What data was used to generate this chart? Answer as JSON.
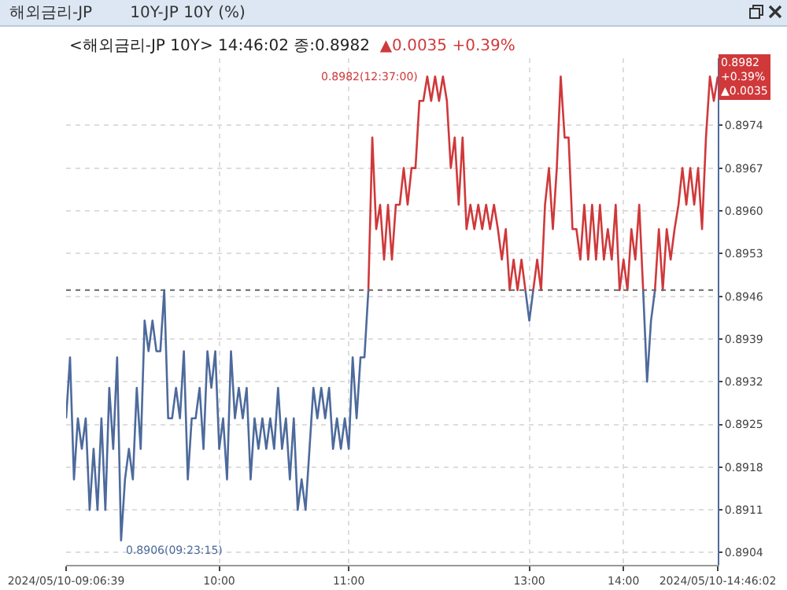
{
  "chart_data": {
    "type": "line",
    "title": "해외금리-JP",
    "subtitle": "10Y-JP 10Y (%)",
    "categories": [
      "2024/05/10-09:06:39",
      null,
      null,
      null,
      null,
      null,
      null,
      null,
      null,
      null,
      null,
      null,
      null,
      null,
      null,
      null,
      null,
      null,
      null,
      null,
      null,
      null,
      null,
      null,
      null,
      null,
      null,
      null,
      null,
      null,
      null,
      null,
      null,
      null,
      null,
      null,
      null,
      null,
      null,
      "10:00",
      null,
      null,
      null,
      null,
      null,
      null,
      null,
      null,
      null,
      null,
      null,
      null,
      null,
      null,
      null,
      null,
      null,
      null,
      null,
      null,
      null,
      null,
      null,
      null,
      null,
      null,
      null,
      null,
      null,
      null,
      null,
      null,
      "11:00",
      null,
      null,
      null,
      null,
      null,
      null,
      null,
      null,
      null,
      null,
      null,
      null,
      null,
      null,
      null,
      null,
      null,
      null,
      null,
      null,
      null,
      null,
      null,
      null,
      null,
      null,
      null,
      null,
      null,
      null,
      null,
      null,
      null,
      null,
      null,
      null,
      null,
      null,
      null,
      null,
      null,
      null,
      null,
      null,
      null,
      "13:00",
      null,
      null,
      null,
      null,
      null,
      null,
      null,
      null,
      null,
      null,
      null,
      null,
      null,
      null,
      null,
      null,
      null,
      null,
      null,
      null,
      null,
      null,
      null,
      "14:00",
      null,
      null,
      null,
      null,
      null,
      null,
      null,
      null,
      null,
      null,
      null,
      null,
      null,
      null,
      null,
      null,
      null,
      null,
      null,
      null,
      null,
      null,
      null,
      "2024/05/10-14:46:02"
    ],
    "series": [
      {
        "color": "#4d6a9c",
        "values": [
          0.8926,
          0.8936,
          0.8916,
          0.8926,
          0.8921,
          0.8926,
          0.8911,
          0.8921,
          0.8911,
          0.8926,
          0.8911,
          0.8931,
          0.8921,
          0.8936,
          0.8906,
          0.8916,
          0.8921,
          0.8916,
          0.8931,
          0.8921,
          0.8942,
          0.8937,
          0.8942,
          0.8937,
          0.8937,
          0.8947,
          0.8926,
          0.8926,
          0.8931,
          0.8926,
          0.8937,
          0.8916,
          0.8926,
          0.8926,
          0.8931,
          0.8921,
          0.8937,
          0.8931,
          0.8937,
          0.8921,
          0.8926,
          0.8916,
          0.8937,
          0.8926,
          0.8931,
          0.8926,
          0.8931,
          0.8916,
          0.8926,
          0.8921,
          0.8926,
          0.8921,
          0.8926,
          0.8921,
          0.8931,
          0.8921,
          0.8926,
          0.8916,
          0.8926,
          0.8911,
          0.8916,
          0.8911,
          0.8921,
          0.8931,
          0.8926,
          0.8931,
          0.8926,
          0.8931,
          0.8921,
          0.8926,
          0.8921,
          0.8926,
          0.8921,
          0.8936,
          0.8926,
          0.8936,
          0.8936,
          0.8947,
          null,
          null,
          null,
          null,
          null,
          null,
          null,
          null,
          null,
          null,
          null,
          null,
          null,
          null,
          null,
          null,
          null,
          null,
          null,
          null,
          null,
          null,
          null,
          null,
          null,
          null,
          null,
          null,
          null,
          null,
          null,
          null,
          null,
          null,
          null,
          null,
          null,
          null,
          null,
          0.8947,
          0.8942,
          0.8947,
          null,
          null,
          null,
          null,
          null,
          null,
          null,
          null,
          null,
          null,
          null,
          null,
          null,
          null,
          null,
          null,
          null,
          null,
          null,
          null,
          null,
          null,
          null,
          null,
          null,
          null,
          null,
          0.8947,
          0.8932,
          0.8942,
          0.8947,
          null,
          null,
          null,
          null,
          null,
          null,
          null,
          null,
          null,
          null,
          null,
          null,
          null,
          null,
          null,
          null
        ]
      },
      {
        "color": "#d0383a",
        "values": [
          null,
          null,
          null,
          null,
          null,
          null,
          null,
          null,
          null,
          null,
          null,
          null,
          null,
          null,
          null,
          null,
          null,
          null,
          null,
          null,
          null,
          null,
          null,
          null,
          null,
          null,
          null,
          null,
          null,
          null,
          null,
          null,
          null,
          null,
          null,
          null,
          null,
          null,
          null,
          null,
          null,
          null,
          null,
          null,
          null,
          null,
          null,
          null,
          null,
          null,
          null,
          null,
          null,
          null,
          null,
          null,
          null,
          null,
          null,
          null,
          null,
          null,
          null,
          null,
          null,
          null,
          null,
          null,
          null,
          null,
          null,
          null,
          null,
          null,
          null,
          null,
          null,
          0.8947,
          0.8972,
          0.8957,
          0.8961,
          0.8952,
          0.8961,
          0.8952,
          0.8961,
          0.8961,
          0.8967,
          0.8961,
          0.8967,
          0.8967,
          0.8978,
          0.8978,
          0.8982,
          0.8978,
          0.8982,
          0.8978,
          0.8982,
          0.8978,
          0.8967,
          0.8972,
          0.8961,
          0.8972,
          0.8957,
          0.8961,
          0.8957,
          0.8961,
          0.8957,
          0.8961,
          0.8957,
          0.8961,
          0.8957,
          0.8952,
          0.8957,
          0.8947,
          0.8952,
          0.8947,
          0.8952,
          0.8947,
          null,
          0.8947,
          0.8952,
          0.8947,
          0.8961,
          0.8967,
          0.8957,
          0.8967,
          0.8982,
          0.8972,
          0.8972,
          0.8957,
          0.8957,
          0.8952,
          0.8961,
          0.8952,
          0.8961,
          0.8952,
          0.8961,
          0.8952,
          0.8957,
          0.8952,
          0.8961,
          0.8947,
          0.8952,
          0.8947,
          0.8957,
          0.8952,
          0.8961,
          0.8947,
          null,
          null,
          0.8947,
          0.8957,
          0.8947,
          0.8957,
          0.8952,
          0.8957,
          0.8961,
          0.8967,
          0.8961,
          0.8967,
          0.8961,
          0.8967,
          0.8957,
          0.8972,
          0.8982,
          0.8978,
          0.8982
        ]
      }
    ],
    "ylim": [
      0.8902,
      0.8985
    ],
    "yticks": [
      0.8904,
      0.8911,
      0.8918,
      0.8925,
      0.8932,
      0.8939,
      0.8946,
      0.8953,
      {
        "value": 0.896,
        "label": "0.8960"
      },
      0.8967,
      0.8974
    ],
    "grid": true,
    "ref_lines": [
      {
        "axis": "y",
        "value": 0.8947,
        "color": "#666666",
        "line_style": "dotted"
      }
    ],
    "annotations": [
      "<해외금리-JP 10Y> 14:46:02 종:0.8982",
      "▲0.0035 +0.39%",
      "0.8906(09:23:15)",
      "0.8982(12:37:00)",
      {
        "text": "0.8982\n+0.39%\n▲0.0035",
        "x": "2024/05/10-14:46:02",
        "y": 0.8982
      }
    ]
  }
}
